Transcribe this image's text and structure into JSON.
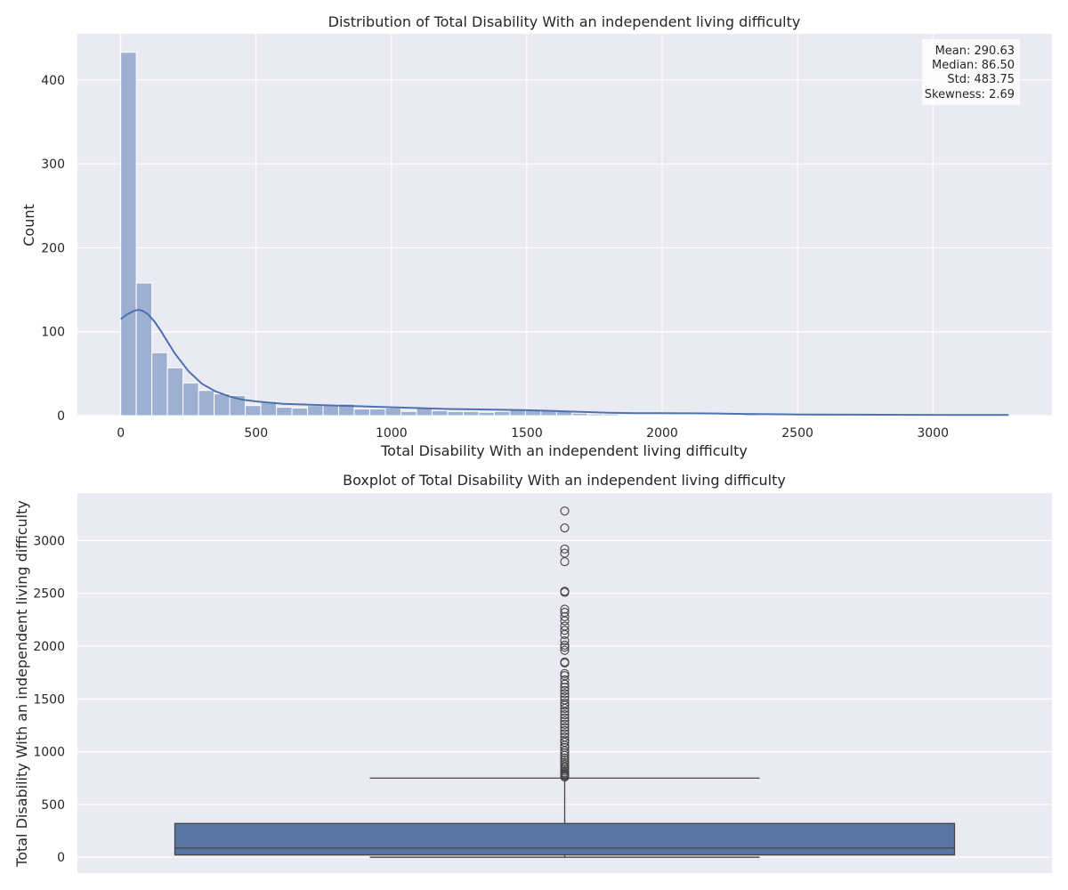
{
  "chart_data": [
    {
      "type": "bar",
      "subtype": "histogram-with-kde",
      "title": "Distribution of Total Disability With an independent living difficulty",
      "xlabel": "Total Disability With an independent living difficulty",
      "ylabel": "Count",
      "xlim": [
        -160,
        3440
      ],
      "ylim": [
        0,
        455
      ],
      "x_ticks": [
        0,
        500,
        1000,
        1500,
        2000,
        2500,
        3000
      ],
      "y_ticks": [
        0,
        100,
        200,
        300,
        400
      ],
      "grid": true,
      "bin_start": 0,
      "bin_width": 57.5,
      "counts": [
        433,
        158,
        75,
        57,
        39,
        30,
        26,
        24,
        12,
        17,
        10,
        9,
        12,
        13,
        14,
        8,
        8,
        9,
        5,
        9,
        6,
        5,
        5,
        4,
        5,
        7,
        6,
        6,
        5,
        3,
        2,
        2,
        1,
        1,
        1,
        1,
        1,
        1,
        1,
        1,
        2,
        1,
        1,
        1,
        1,
        1,
        1,
        1,
        1,
        1,
        1,
        0,
        0,
        1,
        1,
        0,
        1
      ],
      "kde": {
        "x": [
          0,
          25,
          50,
          65,
          80,
          100,
          125,
          150,
          175,
          200,
          250,
          300,
          350,
          400,
          450,
          500,
          600,
          700,
          800,
          900,
          1000,
          1100,
          1200,
          1300,
          1400,
          1500,
          1600,
          1700,
          1800,
          1900,
          2000,
          2100,
          2200,
          2300,
          2400,
          2500,
          2700,
          2900,
          3100,
          3280
        ],
        "y": [
          115,
          121,
          125,
          126,
          125,
          121,
          112,
          100,
          87,
          74,
          53,
          38,
          29,
          23,
          19,
          17,
          14,
          13,
          12,
          11,
          10,
          9,
          8,
          7.5,
          7,
          6.5,
          5.5,
          4.5,
          3.5,
          3,
          3,
          2.8,
          2.5,
          2,
          1.7,
          1.4,
          1.2,
          1,
          0.9,
          0.8
        ]
      },
      "color": "#4c72b0",
      "bar_fill": "#9eb0d2",
      "stats": {
        "mean": "Mean: 290.63",
        "median": "Median: 86.50",
        "std": "Std: 483.75",
        "skewness": "Skewness: 2.69"
      }
    },
    {
      "type": "boxplot",
      "title": "Boxplot of Total Disability With an independent living difficulty",
      "xlabel": "",
      "ylabel": "Total Disability With an independent living difficulty",
      "ylim": [
        -150,
        3450
      ],
      "y_ticks": [
        0,
        500,
        1000,
        1500,
        2000,
        2500,
        3000
      ],
      "grid": true,
      "q1": 22,
      "median": 87,
      "q3": 320,
      "whisker_low": 0,
      "whisker_high": 750,
      "outliers": [
        760,
        770,
        780,
        790,
        800,
        815,
        830,
        845,
        860,
        880,
        900,
        920,
        940,
        965,
        990,
        1010,
        1040,
        1060,
        1090,
        1110,
        1140,
        1170,
        1200,
        1230,
        1260,
        1290,
        1320,
        1350,
        1380,
        1410,
        1440,
        1460,
        1490,
        1520,
        1550,
        1580,
        1610,
        1640,
        1680,
        1720,
        1740,
        1840,
        1850,
        1960,
        1990,
        2010,
        2050,
        2110,
        2150,
        2190,
        2240,
        2280,
        2320,
        2350,
        2510,
        2520,
        2800,
        2880,
        2920,
        3120,
        3280
      ],
      "color": "#5875a4"
    }
  ]
}
